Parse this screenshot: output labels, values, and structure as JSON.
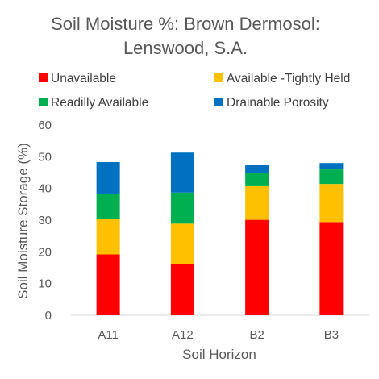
{
  "chart_data": {
    "type": "bar",
    "stacked": true,
    "title": "Soil Moisture %: Brown Dermosol: Lenswood, S.A.",
    "title_lines": [
      "Soil Moisture %: Brown Dermosol:",
      "Lenswood, S.A."
    ],
    "xlabel": "Soil Horizon",
    "ylabel": "Soil Moisture Storage (%)",
    "ylim": [
      0,
      60
    ],
    "yticks": [
      0,
      10,
      20,
      30,
      40,
      50,
      60
    ],
    "ytick_labels": [
      "0",
      "10",
      "20",
      "30",
      "40",
      "50",
      "60"
    ],
    "grid": false,
    "legend_position": "top",
    "categories": [
      "A11",
      "A12",
      "B2",
      "B3"
    ],
    "series": [
      {
        "name": "Unavailable",
        "color": "#ff0000",
        "values": [
          19.2,
          16.2,
          30.1,
          29.4
        ]
      },
      {
        "name": "Available -Tightly Held",
        "color": "#ffc000",
        "values": [
          11.1,
          12.7,
          10.6,
          12.0
        ]
      },
      {
        "name": "Readilly Available",
        "color": "#00b050",
        "values": [
          7.9,
          9.8,
          4.3,
          4.6
        ]
      },
      {
        "name": "Drainable Porosity",
        "color": "#0070c0",
        "values": [
          10.1,
          12.6,
          2.3,
          2.0
        ]
      }
    ]
  }
}
